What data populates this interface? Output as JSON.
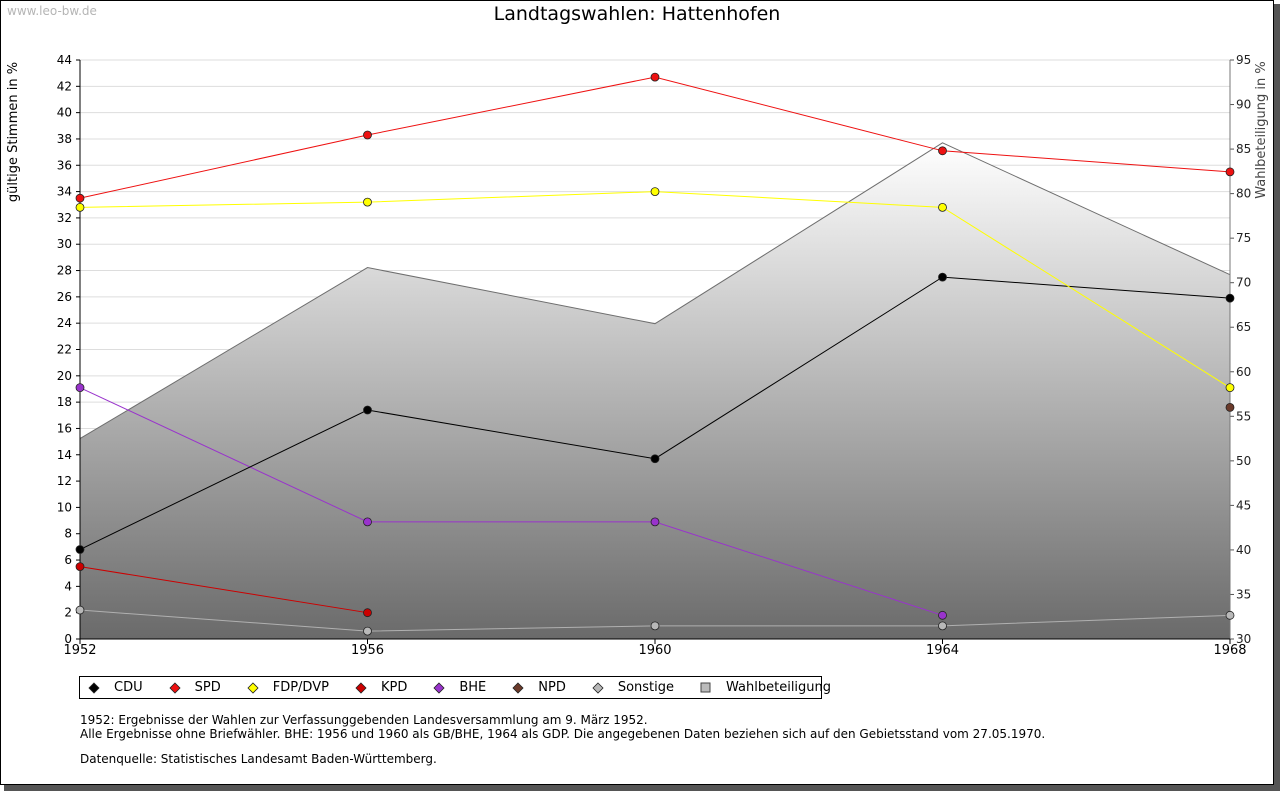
{
  "site": "www.leo-bw.de",
  "chart_data": {
    "type": "line",
    "title": "Landtagswahlen: Hattenhofen",
    "ylabel": "gültige Stimmen in %",
    "y2label": "Wahlbeteiligung in %",
    "x": [
      1952,
      1956,
      1960,
      1964,
      1968
    ],
    "xlim": [
      1952,
      1968
    ],
    "ylim": [
      0,
      44
    ],
    "y2lim": [
      30,
      95
    ],
    "yticks": [
      0,
      2,
      4,
      6,
      8,
      10,
      12,
      14,
      16,
      18,
      20,
      22,
      24,
      26,
      28,
      30,
      32,
      34,
      36,
      38,
      40,
      42,
      44
    ],
    "y2ticks": [
      30,
      35,
      40,
      45,
      50,
      55,
      60,
      65,
      70,
      75,
      80,
      85,
      90,
      95
    ],
    "area": {
      "name": "Wahlbeteiligung",
      "values": [
        52.5,
        71.7,
        65.4,
        85.7,
        70.9
      ]
    },
    "series": [
      {
        "name": "Sonstige",
        "color": "#b0b0b0",
        "marker": "#b8b8b8",
        "values": [
          2.2,
          0.6,
          1.0,
          1.0,
          1.8
        ]
      },
      {
        "name": "BHE",
        "color": "#9933cc",
        "marker": "#9933cc",
        "values": [
          19.1,
          8.9,
          8.9,
          1.8,
          null
        ]
      },
      {
        "name": "KPD",
        "color": "#cc0000",
        "marker": "#cc0000",
        "values": [
          5.5,
          2.0,
          null,
          null,
          null
        ]
      },
      {
        "name": "CDU",
        "color": "#000000",
        "marker": "#000000",
        "values": [
          6.8,
          17.4,
          13.7,
          27.5,
          25.9
        ]
      },
      {
        "name": "FDP/DVP",
        "color": "#ffff00",
        "marker": "#ffff00",
        "values": [
          32.8,
          33.2,
          34.0,
          32.8,
          19.1
        ]
      },
      {
        "name": "SPD",
        "color": "#ee1111",
        "marker": "#ee1111",
        "values": [
          33.5,
          38.3,
          42.7,
          37.1,
          35.5
        ]
      },
      {
        "name": "NPD",
        "color": "#6b3a2a",
        "marker": "#6b3a2a",
        "values": [
          null,
          null,
          null,
          null,
          17.6
        ]
      }
    ]
  },
  "legend": [
    {
      "label": "CDU",
      "color": "#000000",
      "shape": "diamond"
    },
    {
      "label": "SPD",
      "color": "#ee1111",
      "shape": "diamond"
    },
    {
      "label": "FDP/DVP",
      "color": "#ffff00",
      "shape": "diamond"
    },
    {
      "label": "KPD",
      "color": "#cc0000",
      "shape": "diamond"
    },
    {
      "label": "BHE",
      "color": "#9933cc",
      "shape": "diamond"
    },
    {
      "label": "NPD",
      "color": "#6b3a2a",
      "shape": "diamond"
    },
    {
      "label": "Sonstige",
      "color": "#b8b8b8",
      "shape": "diamond"
    },
    {
      "label": "Wahlbeteiligung",
      "color": "#bbbbbb",
      "shape": "square"
    }
  ],
  "notes": {
    "line1": "1952: Ergebnisse der Wahlen zur Verfassunggebenden Landesversammlung am 9. März 1952.",
    "line2": "Alle Ergebnisse ohne Briefwähler. BHE: 1956 und 1960 als GB/BHE, 1964 als GDP. Die angegebenen Daten beziehen sich auf den Gebietsstand vom 27.05.1970.",
    "source": "Datenquelle: Statistisches Landesamt Baden-Württemberg."
  }
}
